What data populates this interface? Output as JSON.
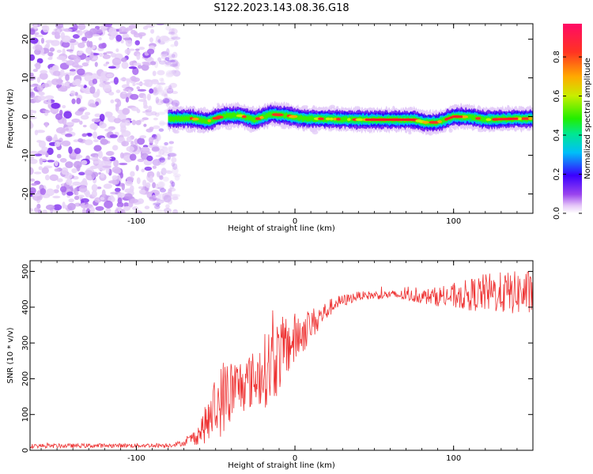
{
  "title": "S122.2023.143.08.36.G18",
  "chart_data": [
    {
      "type": "heatmap",
      "xlabel": "Height of straight line (km)",
      "ylabel": "Frequency (Hz)",
      "xlim": [
        -167,
        150
      ],
      "ylim": [
        -25,
        24
      ],
      "xticks": [
        -100,
        0,
        100
      ],
      "yticks": [
        -20,
        -10,
        0,
        10,
        20
      ],
      "grid": false,
      "noise_region_x": [
        -167,
        -80
      ],
      "line_start_x": -80,
      "ridge": [
        {
          "x": -80,
          "f": -0.5
        },
        {
          "x": -65,
          "f": -0.5
        },
        {
          "x": -55,
          "f": -1.2
        },
        {
          "x": -45,
          "f": 0.2
        },
        {
          "x": -35,
          "f": 0.3
        },
        {
          "x": -25,
          "f": -0.8
        },
        {
          "x": -15,
          "f": 0.6
        },
        {
          "x": -5,
          "f": 0.3
        },
        {
          "x": 5,
          "f": -0.5
        },
        {
          "x": 20,
          "f": -0.6
        },
        {
          "x": 40,
          "f": -0.8
        },
        {
          "x": 60,
          "f": -0.8
        },
        {
          "x": 75,
          "f": -0.8
        },
        {
          "x": 82,
          "f": -1.5
        },
        {
          "x": 90,
          "f": -1.5
        },
        {
          "x": 100,
          "f": 0.0
        },
        {
          "x": 110,
          "f": -0.1
        },
        {
          "x": 120,
          "f": -0.8
        },
        {
          "x": 135,
          "f": -0.6
        },
        {
          "x": 150,
          "f": -0.5
        }
      ],
      "colorbar": {
        "label": "Normalized spectral amplitude",
        "ticks": [
          0.0,
          0.2,
          0.4,
          0.6,
          0.8
        ],
        "range": [
          0,
          0.97
        ]
      }
    },
    {
      "type": "line",
      "xlabel": "Height of straight line (km)",
      "ylabel": "SNR (10 * v/v)",
      "xlim": [
        -167,
        150
      ],
      "ylim": [
        0,
        530
      ],
      "xticks": [
        -100,
        0,
        100
      ],
      "yticks": [
        0,
        100,
        200,
        300,
        400,
        500
      ],
      "grid": false,
      "color": "#ee3333",
      "series": [
        {
          "envelope": [
            {
              "x": -167,
              "mean": 12,
              "amp": 6
            },
            {
              "x": -80,
              "mean": 14,
              "amp": 6
            },
            {
              "x": -70,
              "mean": 20,
              "amp": 8
            },
            {
              "x": -62,
              "mean": 40,
              "amp": 25
            },
            {
              "x": -55,
              "mean": 80,
              "amp": 60
            },
            {
              "x": -45,
              "mean": 150,
              "amp": 110
            },
            {
              "x": -35,
              "mean": 180,
              "amp": 80
            },
            {
              "x": -25,
              "mean": 200,
              "amp": 80
            },
            {
              "x": -15,
              "mean": 240,
              "amp": 120
            },
            {
              "x": -5,
              "mean": 290,
              "amp": 90
            },
            {
              "x": 5,
              "mean": 330,
              "amp": 60
            },
            {
              "x": 15,
              "mean": 370,
              "amp": 35
            },
            {
              "x": 25,
              "mean": 410,
              "amp": 20
            },
            {
              "x": 40,
              "mean": 432,
              "amp": 12
            },
            {
              "x": 60,
              "mean": 435,
              "amp": 12
            },
            {
              "x": 80,
              "mean": 430,
              "amp": 20
            },
            {
              "x": 100,
              "mean": 430,
              "amp": 35
            },
            {
              "x": 120,
              "mean": 440,
              "amp": 55
            },
            {
              "x": 150,
              "mean": 440,
              "amp": 65
            }
          ]
        }
      ]
    }
  ]
}
